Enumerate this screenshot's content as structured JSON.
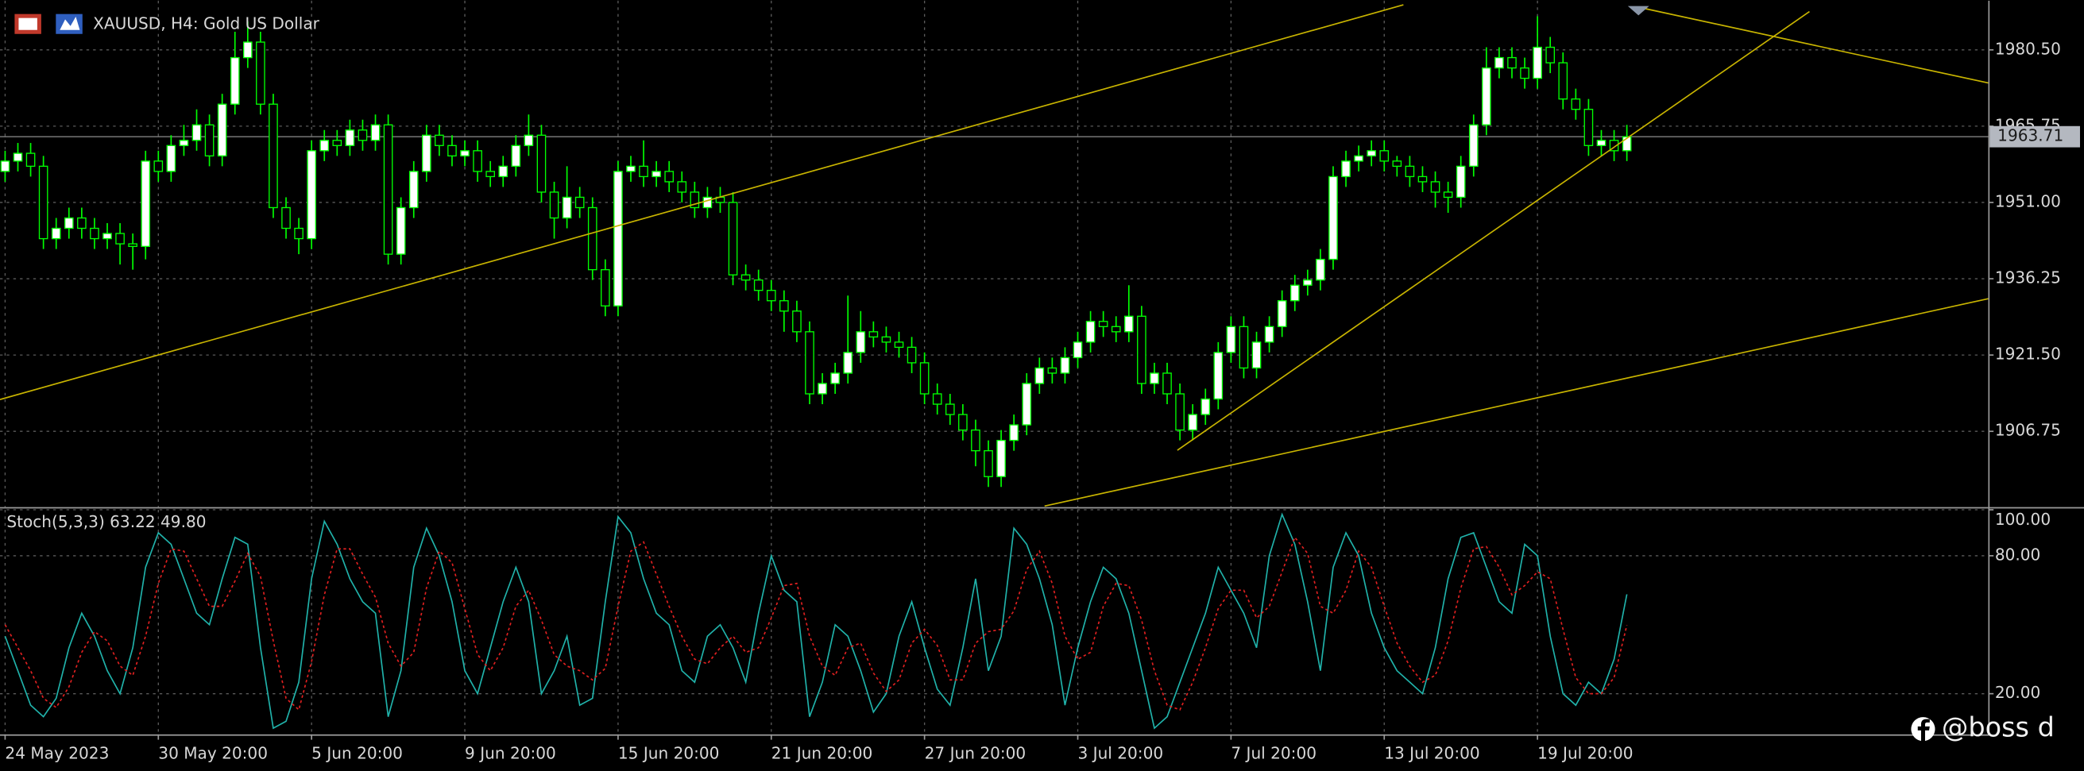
{
  "chart_data": [
    {
      "type": "candlestick",
      "title": "XAUUSD, H4:  Gold US Dollar",
      "color": "#00ff00",
      "bull_fill": "#ffffff",
      "bear_fill": "#000000",
      "open": [
        1957,
        1959,
        1960.5,
        1958,
        1944,
        1946,
        1948,
        1946,
        1944,
        1945,
        1943,
        1942.5,
        1959,
        1957,
        1962,
        1963,
        1966,
        1960,
        1970,
        1979,
        1982,
        1970,
        1950,
        1946,
        1944,
        1961,
        1963,
        1962,
        1965,
        1963,
        1966,
        1941,
        1950,
        1957,
        1964,
        1962,
        1960,
        1961,
        1957,
        1956,
        1958,
        1962,
        1964,
        1953,
        1948,
        1952,
        1950,
        1938,
        1931,
        1957,
        1958,
        1956,
        1957,
        1955,
        1953,
        1950,
        1952,
        1951,
        1937,
        1936,
        1934,
        1932,
        1930,
        1926,
        1914,
        1916,
        1918,
        1922,
        1926,
        1925,
        1924,
        1923,
        1920,
        1914,
        1912,
        1910,
        1907,
        1903,
        1898,
        1905,
        1908,
        1916,
        1919,
        1918,
        1921,
        1924,
        1928,
        1927,
        1926,
        1929,
        1916,
        1918,
        1914,
        1907,
        1910,
        1913,
        1922,
        1927,
        1919,
        1924,
        1927,
        1932,
        1935,
        1936,
        1940,
        1956,
        1959,
        1960,
        1961,
        1959,
        1958,
        1956,
        1955,
        1953,
        1952,
        1958,
        1966,
        1977,
        1979,
        1977,
        1975,
        1981,
        1978,
        1971,
        1969,
        1962,
        1963,
        1961
      ],
      "high": [
        1961,
        1962.5,
        1962.5,
        1960,
        1948,
        1950,
        1950,
        1948,
        1947,
        1947,
        1945,
        1961,
        1961,
        1964,
        1966,
        1969,
        1968,
        1972,
        1984,
        1986,
        1984,
        1972,
        1952,
        1948,
        1963,
        1965,
        1965,
        1967,
        1967,
        1968,
        1968,
        1952,
        1959,
        1966,
        1966,
        1964,
        1963,
        1963,
        1959,
        1960,
        1964,
        1968,
        1966,
        1955,
        1958,
        1954,
        1952,
        1940,
        1959,
        1960,
        1963,
        1959,
        1959,
        1957,
        1955,
        1954,
        1954,
        1953,
        1939,
        1938,
        1936,
        1934,
        1932,
        1928,
        1918,
        1920,
        1933,
        1930,
        1928,
        1927,
        1926,
        1925,
        1922,
        1916,
        1914,
        1912,
        1909,
        1905,
        1907,
        1910,
        1918,
        1921,
        1921,
        1923,
        1926,
        1930,
        1930,
        1929,
        1935,
        1931,
        1920,
        1920,
        1916,
        1912,
        1915,
        1924,
        1929,
        1929,
        1926,
        1929,
        1934,
        1937,
        1938,
        1942,
        1958,
        1961,
        1962,
        1963,
        1963,
        1960,
        1960,
        1958,
        1957,
        1955,
        1960,
        1968,
        1981,
        1981,
        1981,
        1979,
        1987,
        1983,
        1980,
        1973,
        1971,
        1965,
        1965,
        1966
      ],
      "low": [
        1955,
        1957,
        1956,
        1942,
        1942,
        1944,
        1944,
        1942,
        1942,
        1939,
        1938,
        1940,
        1955,
        1955,
        1960,
        1961,
        1958,
        1958,
        1968,
        1977,
        1968,
        1948,
        1944,
        1941,
        1942,
        1959,
        1960,
        1960,
        1961,
        1961,
        1939,
        1939,
        1948,
        1955,
        1960,
        1958,
        1958,
        1955,
        1954,
        1954,
        1956,
        1960,
        1951,
        1944,
        1946,
        1948,
        1936,
        1929,
        1929,
        1955,
        1954,
        1954,
        1953,
        1951,
        1948,
        1948,
        1949,
        1935,
        1934,
        1932,
        1930,
        1926,
        1924,
        1912,
        1912,
        1914,
        1916,
        1920,
        1923,
        1922,
        1921,
        1918,
        1912,
        1910,
        1908,
        1905,
        1900,
        1896,
        1896,
        1903,
        1906,
        1914,
        1916,
        1916,
        1919,
        1922,
        1925,
        1924,
        1924,
        1914,
        1914,
        1912,
        1905,
        1905,
        1908,
        1911,
        1920,
        1917,
        1917,
        1922,
        1925,
        1930,
        1933,
        1934,
        1938,
        1954,
        1957,
        1958,
        1957,
        1956,
        1954,
        1953,
        1950,
        1949,
        1950,
        1956,
        1964,
        1975,
        1975,
        1973,
        1973,
        1976,
        1969,
        1967,
        1960,
        1960,
        1959,
        1959
      ],
      "close": [
        1959,
        1960.5,
        1958,
        1944,
        1946,
        1948,
        1946,
        1944,
        1945,
        1943,
        1942.5,
        1959,
        1957,
        1962,
        1963,
        1966,
        1960,
        1970,
        1979,
        1982,
        1970,
        1950,
        1946,
        1944,
        1961,
        1963,
        1962,
        1965,
        1963,
        1966,
        1941,
        1950,
        1957,
        1964,
        1962,
        1960,
        1961,
        1957,
        1956,
        1958,
        1962,
        1964,
        1953,
        1948,
        1952,
        1950,
        1938,
        1931,
        1957,
        1958,
        1956,
        1957,
        1955,
        1953,
        1950,
        1952,
        1951,
        1937,
        1936,
        1934,
        1932,
        1930,
        1926,
        1914,
        1916,
        1918,
        1922,
        1926,
        1925,
        1924,
        1923,
        1920,
        1914,
        1912,
        1910,
        1907,
        1903,
        1898,
        1905,
        1908,
        1916,
        1919,
        1918,
        1921,
        1924,
        1928,
        1927,
        1926,
        1929,
        1916,
        1918,
        1914,
        1907,
        1910,
        1913,
        1922,
        1927,
        1919,
        1924,
        1927,
        1932,
        1935,
        1936,
        1940,
        1956,
        1959,
        1960,
        1961,
        1959,
        1958,
        1956,
        1955,
        1953,
        1952,
        1958,
        1966,
        1977,
        1979,
        1977,
        1975,
        1981,
        1978,
        1971,
        1969,
        1962,
        1963,
        1961,
        1963.71
      ],
      "xlim": [
        -0.4,
        155.3
      ],
      "xticks": [
        {
          "value": 0,
          "label": "24 May 2023"
        },
        {
          "value": 12,
          "label": "30 May 20:00"
        },
        {
          "value": 24,
          "label": "5 Jun 20:00"
        },
        {
          "value": 36,
          "label": "9 Jun 20:00"
        },
        {
          "value": 48,
          "label": "15 Jun 20:00"
        },
        {
          "value": 60,
          "label": "21 Jun 20:00"
        },
        {
          "value": 72,
          "label": "27 Jun 20:00"
        },
        {
          "value": 84,
          "label": "3 Jul 20:00"
        },
        {
          "value": 96,
          "label": "7 Jul 20:00"
        },
        {
          "value": 108,
          "label": "13 Jul 20:00"
        },
        {
          "value": 120,
          "label": "19 Jul 20:00"
        }
      ],
      "ylim": [
        1892.1,
        1990.0
      ],
      "yticks": [
        {
          "value": 1980.5,
          "label": "1980.50"
        },
        {
          "value": 1965.75,
          "label": "1965.75"
        },
        {
          "value": 1951,
          "label": "1951.00"
        },
        {
          "value": 1936.25,
          "label": "1936.25"
        },
        {
          "value": 1921.5,
          "label": "1921.50"
        },
        {
          "value": 1906.75,
          "label": "1906.75"
        }
      ],
      "grid": true,
      "current_price": 1963.71,
      "trendline_color": "#c8b400",
      "trendlines": [
        {
          "x": [
            -0.4,
            109.5
          ],
          "y": [
            1912.9,
            1989.2
          ]
        },
        {
          "x": [
            81.4,
            155.3
          ],
          "y": [
            1892.3,
            1932.4
          ]
        },
        {
          "x": [
            91.8,
            141.3
          ],
          "y": [
            1903.1,
            1987.9
          ]
        },
        {
          "x": [
            128,
            155.3
          ],
          "y": [
            1988.7,
            1974.1
          ]
        }
      ]
    },
    {
      "type": "line",
      "title": "Stoch(5,3,3) 63.22 49.80",
      "ylim": [
        2.3,
        100
      ],
      "yticks": [
        {
          "value": 100,
          "label": "100.00"
        },
        {
          "value": 80,
          "label": "80.00"
        },
        {
          "value": 20,
          "label": "20.00"
        }
      ],
      "series": [
        {
          "color": "#20b2aa",
          "dash": false,
          "values": [
            45,
            30,
            15,
            10,
            18,
            40,
            55,
            45,
            30,
            20,
            40,
            75,
            90,
            85,
            70,
            55,
            50,
            70,
            88,
            85,
            40,
            5,
            8,
            25,
            70,
            95,
            85,
            70,
            60,
            55,
            10,
            30,
            75,
            92,
            80,
            60,
            30,
            20,
            40,
            60,
            75,
            60,
            20,
            30,
            45,
            15,
            18,
            60,
            97,
            90,
            70,
            55,
            50,
            30,
            25,
            45,
            50,
            40,
            25,
            55,
            80,
            65,
            60,
            10,
            25,
            50,
            45,
            30,
            12,
            20,
            45,
            60,
            40,
            22,
            15,
            40,
            70,
            30,
            45,
            92,
            85,
            70,
            50,
            15,
            40,
            60,
            75,
            70,
            55,
            30,
            5,
            10,
            25,
            40,
            55,
            75,
            65,
            55,
            40,
            80,
            98,
            85,
            60,
            30,
            75,
            90,
            80,
            55,
            40,
            30,
            25,
            20,
            40,
            70,
            88,
            90,
            75,
            60,
            55,
            85,
            80,
            45,
            20,
            15,
            25,
            20,
            35,
            63.22
          ]
        },
        {
          "color": "#e02020",
          "dash": true,
          "values": [
            50,
            40,
            30,
            18,
            14,
            23,
            38,
            47,
            43,
            32,
            28,
            45,
            68,
            83,
            82,
            70,
            58,
            58,
            69,
            81,
            71,
            43,
            18,
            13,
            34,
            63,
            83,
            83,
            72,
            62,
            42,
            32,
            38,
            66,
            82,
            77,
            57,
            37,
            30,
            40,
            58,
            65,
            52,
            37,
            32,
            30,
            26,
            31,
            58,
            82,
            86,
            72,
            58,
            45,
            35,
            33,
            40,
            45,
            38,
            40,
            53,
            67,
            68,
            45,
            32,
            28,
            40,
            42,
            29,
            21,
            26,
            42,
            48,
            41,
            26,
            26,
            42,
            47,
            48,
            56,
            74,
            82,
            68,
            45,
            35,
            38,
            58,
            68,
            67,
            52,
            30,
            15,
            13,
            25,
            40,
            57,
            65,
            65,
            53,
            58,
            73,
            88,
            81,
            58,
            55,
            65,
            82,
            75,
            58,
            42,
            32,
            25,
            28,
            43,
            66,
            83,
            84,
            75,
            63,
            67,
            73,
            70,
            48,
            27,
            20,
            20,
            27,
            49.8
          ]
        }
      ]
    }
  ],
  "watermark": "@boss d"
}
